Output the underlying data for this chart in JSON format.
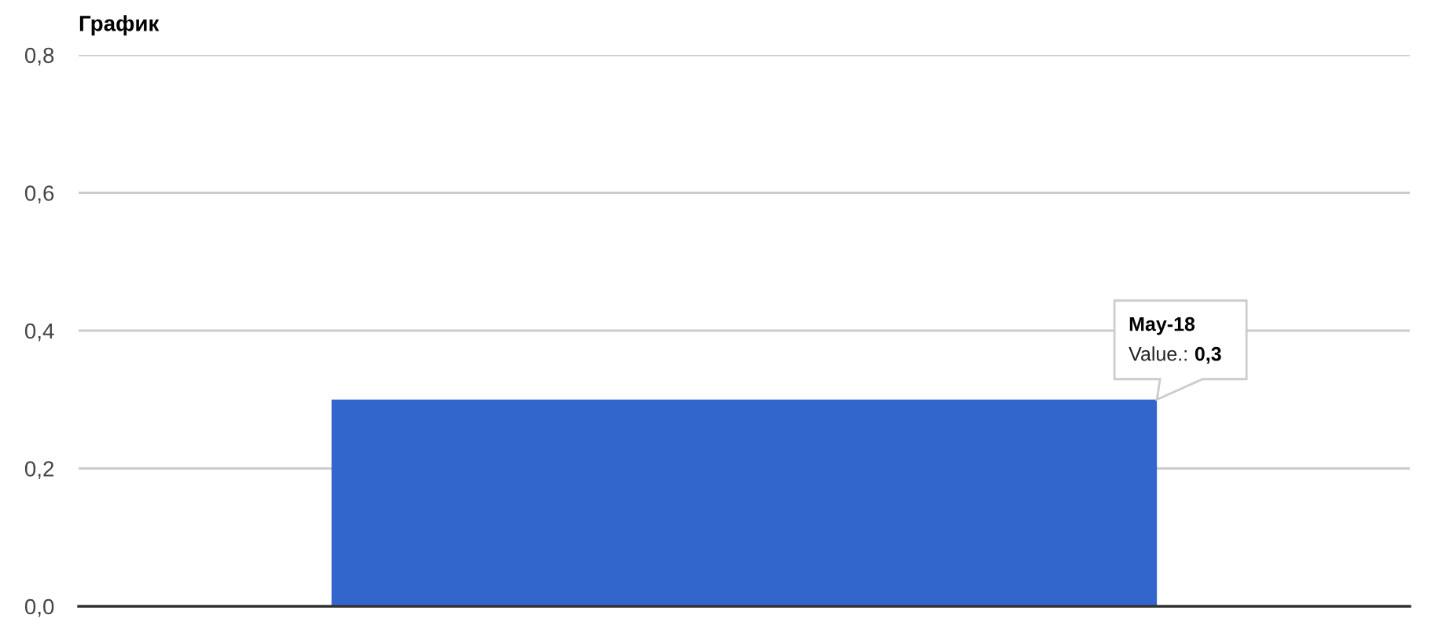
{
  "chart_data": {
    "type": "bar",
    "title": "График",
    "categories": [
      null
    ],
    "values": [
      0.3
    ],
    "color": "#3366cc",
    "ylim": [
      0,
      0.8
    ],
    "yticks": [
      {
        "value": 0,
        "label": "0,0"
      },
      {
        "value": 0.2,
        "label": "0,2"
      },
      {
        "value": 0.4,
        "label": "0,4"
      },
      {
        "value": 0.6,
        "label": "0,6"
      },
      {
        "value": 0.8,
        "label": "0,8"
      }
    ],
    "grid": "y",
    "tick_labels": "y",
    "annotations": [
      "May-18",
      "Value.:",
      "0,3"
    ]
  }
}
